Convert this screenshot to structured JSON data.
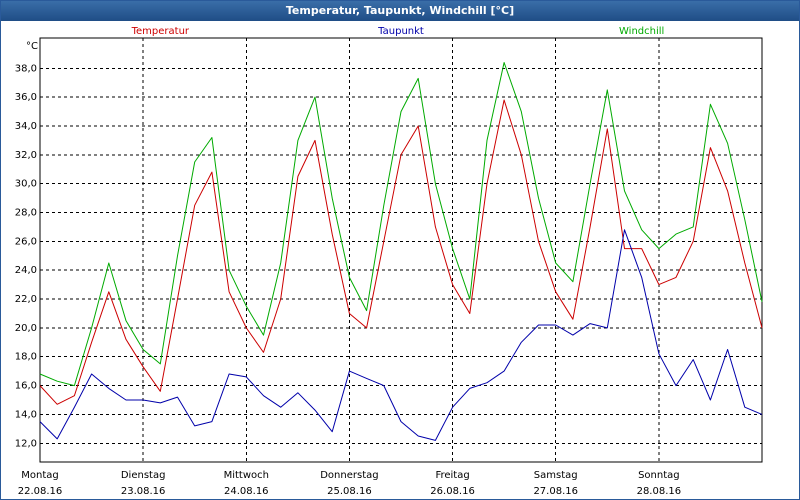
{
  "chart_data": {
    "type": "line",
    "title": "Temperatur, Taupunkt, Windchill [°C]",
    "ylabel": "°C",
    "x": [
      0,
      4,
      8,
      12,
      16,
      20,
      24,
      28,
      32,
      36,
      40,
      44,
      48,
      52,
      56,
      60,
      64,
      68,
      72,
      76,
      80,
      84,
      88,
      92,
      96,
      100,
      104,
      108,
      112,
      116,
      120,
      124,
      128,
      132,
      136,
      140,
      144,
      148,
      152,
      156,
      160,
      164,
      168
    ],
    "xlim": [
      0,
      168
    ],
    "xticks": [
      {
        "value": 0,
        "label": "Montag"
      },
      {
        "value": 24,
        "label": "Dienstag"
      },
      {
        "value": 48,
        "label": "Mittwoch"
      },
      {
        "value": 72,
        "label": "Donnerstag"
      },
      {
        "value": 96,
        "label": "Freitag"
      },
      {
        "value": 120,
        "label": "Samstag"
      },
      {
        "value": 144,
        "label": "Sonntag"
      }
    ],
    "xtick_dates": [
      "22.08.16",
      "23.08.16",
      "24.08.16",
      "25.08.16",
      "26.08.16",
      "27.08.16",
      "28.08.16"
    ],
    "ylim": [
      10.7,
      40.1
    ],
    "yticks": [
      {
        "value": 12,
        "label": "12,0"
      },
      {
        "value": 14,
        "label": "14,0"
      },
      {
        "value": 16,
        "label": "16,0"
      },
      {
        "value": 18,
        "label": "18,0"
      },
      {
        "value": 20,
        "label": "20,0"
      },
      {
        "value": 22,
        "label": "22,0"
      },
      {
        "value": 24,
        "label": "24,0"
      },
      {
        "value": 26,
        "label": "26,0"
      },
      {
        "value": 28,
        "label": "28,0"
      },
      {
        "value": 30,
        "label": "30,0"
      },
      {
        "value": 32,
        "label": "32,0"
      },
      {
        "value": 34,
        "label": "34,0"
      },
      {
        "value": 36,
        "label": "36,0"
      },
      {
        "value": 38,
        "label": "38,0"
      }
    ],
    "grid": true,
    "series": [
      {
        "name": "Temperatur",
        "color": "#cc0000",
        "values": [
          16.0,
          14.7,
          15.3,
          19.0,
          22.5,
          19.2,
          17.3,
          15.6,
          22,
          28.5,
          30.8,
          22.5,
          20.0,
          18.3,
          22,
          30.5,
          33.0,
          26.5,
          21,
          20.0,
          26,
          32,
          34.0,
          27,
          23,
          21,
          30,
          35.8,
          32,
          26,
          22.5,
          20.6,
          27,
          33.8,
          25.5,
          25.5,
          23,
          23.5,
          26,
          32.5,
          29.5,
          24.5,
          20
        ]
      },
      {
        "name": "Taupunkt",
        "color": "#0000aa",
        "values": [
          13.5,
          12.3,
          14.5,
          16.8,
          15.8,
          15.0,
          15.0,
          14.8,
          15.2,
          13.2,
          13.5,
          16.8,
          16.6,
          15.3,
          14.5,
          15.5,
          14.3,
          12.8,
          17.0,
          16.5,
          16.0,
          13.5,
          12.5,
          12.2,
          14.5,
          15.8,
          16.2,
          17.0,
          19.0,
          20.2,
          20.2,
          19.5,
          20.3,
          20.0,
          26.8,
          23.5,
          18.2,
          16.0,
          17.8,
          15.0,
          18.5,
          14.5,
          14.0
        ]
      },
      {
        "name": "Windchill",
        "color": "#00aa00",
        "values": [
          16.8,
          16.3,
          16,
          20,
          24.5,
          20.5,
          18.5,
          17.5,
          25,
          31.5,
          33.2,
          24,
          21.5,
          19.5,
          24.5,
          33,
          36,
          29,
          23.5,
          21.2,
          28.5,
          35,
          37.3,
          30,
          25.5,
          22,
          33,
          38.4,
          35,
          29,
          24.5,
          23.2,
          30,
          36.5,
          29.5,
          26.8,
          25.5,
          26.5,
          27,
          35.5,
          32.8,
          27.5,
          21.8
        ]
      }
    ]
  }
}
